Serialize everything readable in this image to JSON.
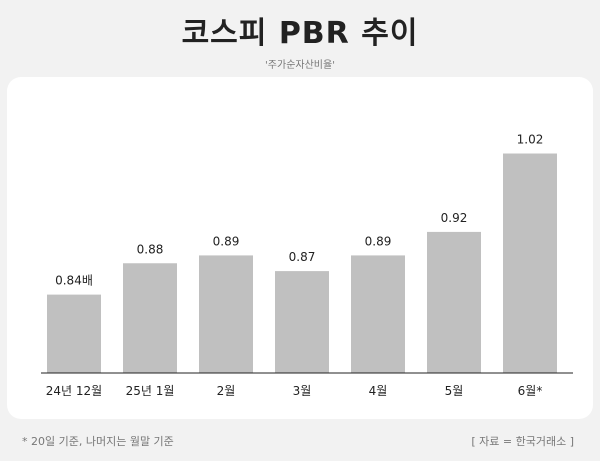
{
  "title": "코스피 PBR 추이",
  "subtitle": "'주가순자산비율'",
  "footnote": "*  20일 기준, 나머지는 월말 기준",
  "source": "[ 자료 = 한국거래소 ]",
  "colors": {
    "bar": "#c0c0c0",
    "axis": "#222222",
    "background": "#f2f2f2",
    "panel": "#ffffff"
  },
  "chart_data": {
    "type": "bar",
    "title": "코스피 PBR 추이",
    "subtitle": "'주가순자산비율'",
    "categories": [
      "24년 12월",
      "25년 1월",
      "2월",
      "3월",
      "4월",
      "5월",
      "6월*"
    ],
    "values": [
      0.84,
      0.88,
      0.89,
      0.87,
      0.89,
      0.92,
      1.02
    ],
    "data_labels": [
      "0.84배",
      "0.88",
      "0.89",
      "0.87",
      "0.89",
      "0.92",
      "1.02"
    ],
    "xlabel": "",
    "ylabel": "",
    "ylim": [
      0.74,
      1.05
    ],
    "grid": false,
    "legend": "none"
  }
}
